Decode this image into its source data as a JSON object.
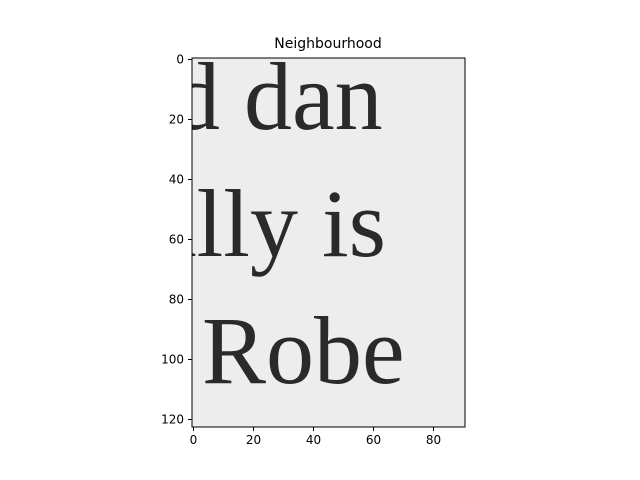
{
  "chart_data": {
    "type": "image",
    "title": "Neighbourhood",
    "xlabel": "",
    "ylabel": "",
    "image_width": 91,
    "image_height": 123,
    "xlim": [
      -0.5,
      90.5
    ],
    "ylim": [
      122.5,
      -0.5
    ],
    "x_ticks": [
      0,
      20,
      40,
      60,
      80
    ],
    "y_ticks": [
      0,
      20,
      40,
      60,
      80,
      100,
      120
    ],
    "colormap": "gray",
    "grid": false,
    "image_text_lines": [
      "d dan",
      "ally is",
      "Robe"
    ]
  }
}
